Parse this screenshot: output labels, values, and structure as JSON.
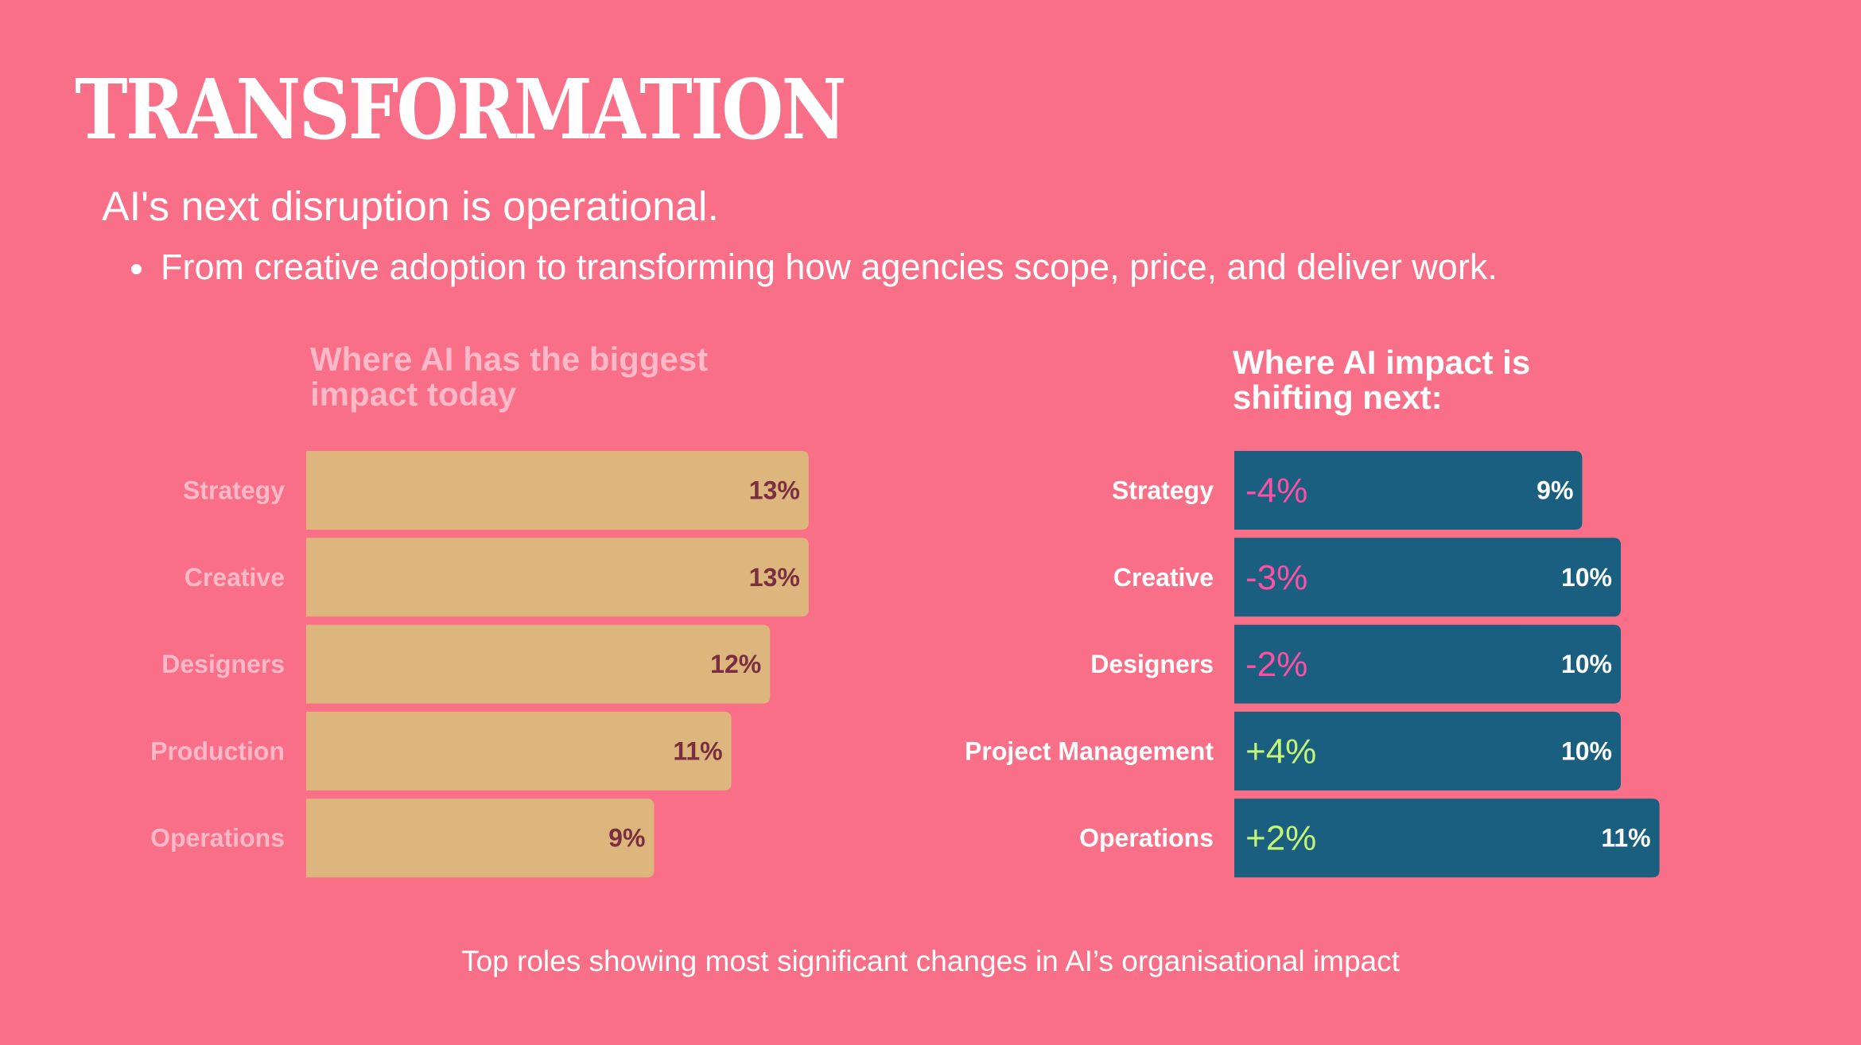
{
  "header": {
    "title": "TRANSFORMATION",
    "subtitle": "AI's next disruption is operational.",
    "bullet": "From creative adoption to transforming how agencies scope, price, and deliver work."
  },
  "colors": {
    "background": "#f96f87",
    "left_bar": "#ddb67d",
    "left_value_text": "#7a2e3f",
    "left_label_text": "#fdb9c8",
    "right_bar": "#1a5f80",
    "right_value_text": "#ffffff",
    "right_label_text": "#ffffff",
    "negative_change": "#ff4fa3",
    "positive_change": "#c4f577"
  },
  "caption": "Top roles showing most significant changes in AI’s organisational impact",
  "chart_data": [
    {
      "type": "bar",
      "orientation": "horizontal",
      "title": "Where AI has the biggest\nimpact today",
      "categories": [
        "Strategy",
        "Creative",
        "Designers",
        "Production",
        "Operations"
      ],
      "values": [
        13,
        13,
        12,
        11,
        9
      ],
      "value_labels": [
        "13%",
        "13%",
        "12%",
        "11%",
        "9%"
      ],
      "unit": "%",
      "xlim": [
        0,
        13
      ],
      "grid": false,
      "legend": "none"
    },
    {
      "type": "bar",
      "orientation": "horizontal",
      "title": "Where AI impact is\nshifting next:",
      "categories": [
        "Strategy",
        "Creative",
        "Designers",
        "Project Management",
        "Operations"
      ],
      "values": [
        9,
        10,
        10,
        10,
        11
      ],
      "value_labels": [
        "9%",
        "10%",
        "10%",
        "10%",
        "11%"
      ],
      "changes": [
        -4,
        -3,
        -2,
        4,
        2
      ],
      "change_labels": [
        "-4%",
        "-3%",
        "-2%",
        "+4%",
        "+2%"
      ],
      "unit": "%",
      "xlim": [
        0,
        11
      ],
      "grid": false,
      "legend": "none"
    }
  ]
}
